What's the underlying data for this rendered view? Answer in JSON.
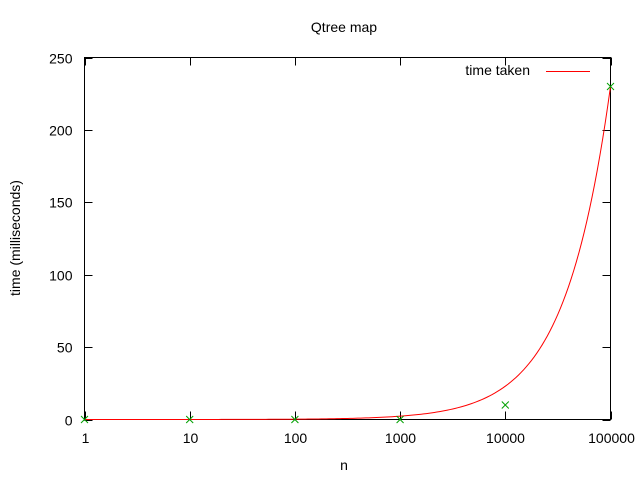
{
  "chart_data": {
    "type": "line",
    "title": "Qtree map",
    "xlabel": "n",
    "ylabel": "time (milliseconds)",
    "x_scale": "log",
    "xlim": [
      1,
      100000
    ],
    "ylim": [
      0,
      250
    ],
    "x_ticks": [
      {
        "value": 1,
        "label": "1"
      },
      {
        "value": 10,
        "label": "10"
      },
      {
        "value": 100,
        "label": "100"
      },
      {
        "value": 1000,
        "label": "1000"
      },
      {
        "value": 10000,
        "label": "10000"
      },
      {
        "value": 100000,
        "label": "100000"
      }
    ],
    "y_ticks": [
      {
        "value": 0,
        "label": "0"
      },
      {
        "value": 50,
        "label": "50"
      },
      {
        "value": 100,
        "label": "100"
      },
      {
        "value": 150,
        "label": "150"
      },
      {
        "value": 200,
        "label": "200"
      },
      {
        "value": 250,
        "label": "250"
      }
    ],
    "grid": false,
    "legend": {
      "position": "top-right"
    },
    "points": {
      "color": "#00a000",
      "marker": "x",
      "x": [
        1,
        10,
        100,
        1000,
        10000,
        100000
      ],
      "y": [
        0,
        0,
        0,
        0,
        10,
        230
      ]
    },
    "series": [
      {
        "name": "time taken",
        "color": "#ff0000",
        "fit": "linear",
        "slope": 0.0023,
        "intercept": 0
      }
    ]
  }
}
